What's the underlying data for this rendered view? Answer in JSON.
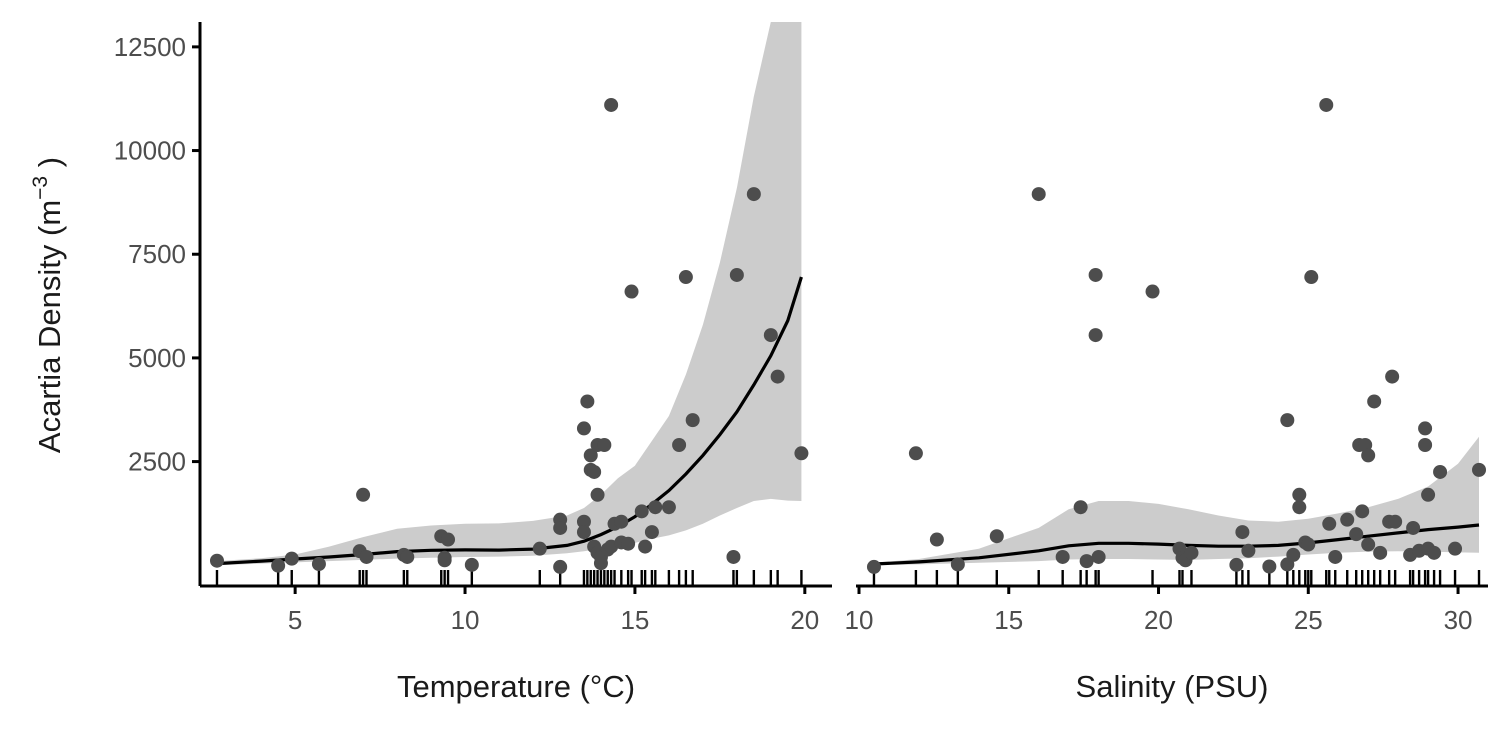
{
  "chart_data": [
    {
      "type": "scatter",
      "xlabel": "Temperature (°C)",
      "ylabel": {
        "text": "Acartia Density (m",
        "sup": "−3",
        "close": " )"
      },
      "xlim": [
        2.2,
        20.8
      ],
      "ylim": [
        -500,
        13100
      ],
      "xticks": [
        5,
        10,
        15,
        20
      ],
      "yticks": [
        2500,
        5000,
        7500,
        10000,
        12500
      ],
      "grid": false,
      "colors": {
        "points": "#4d4d4d",
        "band": "#cccccc",
        "line": "#000000"
      },
      "smooth": {
        "x": [
          2.7,
          4,
          5,
          6,
          7,
          8,
          9,
          10,
          11,
          12,
          13,
          13.5,
          14,
          14.5,
          15,
          15.5,
          16,
          16.5,
          17,
          17.5,
          18,
          18.5,
          19,
          19.5,
          19.9
        ],
        "y": [
          40,
          100,
          150,
          200,
          260,
          330,
          360,
          370,
          365,
          390,
          480,
          580,
          740,
          930,
          1170,
          1470,
          1800,
          2200,
          2650,
          3150,
          3700,
          4350,
          5050,
          5900,
          6950
        ],
        "lower": [
          0,
          40,
          70,
          100,
          130,
          160,
          180,
          200,
          210,
          230,
          290,
          340,
          400,
          460,
          540,
          640,
          720,
          840,
          1000,
          1200,
          1380,
          1550,
          1600,
          1560,
          1550
        ],
        "upper": [
          100,
          170,
          260,
          450,
          680,
          880,
          960,
          1000,
          1010,
          1070,
          1200,
          1380,
          1700,
          2100,
          2400,
          3000,
          3600,
          4600,
          5800,
          7300,
          9100,
          11300,
          13100,
          13100,
          13100
        ]
      },
      "points": [
        {
          "x": 2.7,
          "y": 110
        },
        {
          "x": 4.5,
          "y": -10
        },
        {
          "x": 4.9,
          "y": 160
        },
        {
          "x": 5.7,
          "y": 30
        },
        {
          "x": 6.9,
          "y": 340
        },
        {
          "x": 7.0,
          "y": 1700
        },
        {
          "x": 7.1,
          "y": 200
        },
        {
          "x": 8.2,
          "y": 250
        },
        {
          "x": 8.3,
          "y": 200
        },
        {
          "x": 9.3,
          "y": 700
        },
        {
          "x": 9.4,
          "y": 180
        },
        {
          "x": 9.5,
          "y": 620
        },
        {
          "x": 9.4,
          "y": 120
        },
        {
          "x": 10.2,
          "y": 10
        },
        {
          "x": 12.2,
          "y": 400
        },
        {
          "x": 12.8,
          "y": 1100
        },
        {
          "x": 12.8,
          "y": 900
        },
        {
          "x": 12.8,
          "y": -40
        },
        {
          "x": 13.5,
          "y": 3300
        },
        {
          "x": 13.6,
          "y": 3950
        },
        {
          "x": 13.5,
          "y": 1050
        },
        {
          "x": 13.5,
          "y": 800
        },
        {
          "x": 13.7,
          "y": 2650
        },
        {
          "x": 13.7,
          "y": 2300
        },
        {
          "x": 13.8,
          "y": 2250
        },
        {
          "x": 13.9,
          "y": 2900
        },
        {
          "x": 13.9,
          "y": 1700
        },
        {
          "x": 13.8,
          "y": 450
        },
        {
          "x": 13.9,
          "y": 300
        },
        {
          "x": 14.0,
          "y": 50
        },
        {
          "x": 14.0,
          "y": 200
        },
        {
          "x": 14.1,
          "y": 2900
        },
        {
          "x": 14.2,
          "y": 380
        },
        {
          "x": 14.3,
          "y": 450
        },
        {
          "x": 14.3,
          "y": 11100
        },
        {
          "x": 14.4,
          "y": 1000
        },
        {
          "x": 14.6,
          "y": 1050
        },
        {
          "x": 14.6,
          "y": 550
        },
        {
          "x": 14.8,
          "y": 520
        },
        {
          "x": 14.9,
          "y": 6600
        },
        {
          "x": 15.2,
          "y": 1300
        },
        {
          "x": 15.3,
          "y": 450
        },
        {
          "x": 15.5,
          "y": 800
        },
        {
          "x": 15.6,
          "y": 1400
        },
        {
          "x": 16.0,
          "y": 1400
        },
        {
          "x": 16.3,
          "y": 2900
        },
        {
          "x": 16.5,
          "y": 6950
        },
        {
          "x": 16.7,
          "y": 3500
        },
        {
          "x": 17.9,
          "y": 200
        },
        {
          "x": 18.0,
          "y": 7000
        },
        {
          "x": 18.5,
          "y": 8950
        },
        {
          "x": 19.0,
          "y": 5550
        },
        {
          "x": 19.2,
          "y": 4550
        },
        {
          "x": 19.9,
          "y": 2700
        }
      ],
      "rug": [
        2.7,
        4.5,
        4.9,
        5.7,
        6.9,
        7.0,
        7.1,
        8.2,
        8.3,
        9.3,
        9.4,
        9.5,
        10.2,
        12.2,
        12.8,
        13.5,
        13.6,
        13.7,
        13.8,
        13.9,
        14.0,
        14.1,
        14.2,
        14.3,
        14.4,
        14.6,
        14.8,
        14.9,
        15.2,
        15.3,
        15.5,
        15.6,
        16.0,
        16.3,
        16.5,
        16.7,
        17.9,
        18.0,
        18.5,
        19.0,
        19.2,
        19.9
      ]
    },
    {
      "type": "scatter",
      "xlabel": "Salinity (PSU)",
      "xlim": [
        9.9,
        31.0
      ],
      "ylim": [
        -500,
        13100
      ],
      "xticks": [
        10,
        15,
        20,
        25,
        30
      ],
      "grid": false,
      "colors": {
        "points": "#4d4d4d",
        "band": "#cccccc",
        "line": "#000000"
      },
      "smooth": {
        "x": [
          10.5,
          12,
          14,
          16,
          17,
          18,
          19,
          20,
          21,
          22,
          23,
          24,
          25,
          26,
          27,
          28,
          29,
          30,
          30.7
        ],
        "y": [
          30,
          80,
          180,
          350,
          470,
          530,
          530,
          510,
          480,
          460,
          460,
          480,
          540,
          620,
          700,
          780,
          860,
          920,
          970
        ],
        "lower": [
          0,
          20,
          60,
          100,
          140,
          150,
          150,
          140,
          130,
          150,
          170,
          210,
          260,
          300,
          330,
          340,
          330,
          310,
          300
        ],
        "upper": [
          60,
          150,
          400,
          900,
          1350,
          1550,
          1550,
          1480,
          1350,
          1200,
          1080,
          1050,
          1120,
          1250,
          1400,
          1600,
          1900,
          2450,
          3100
        ]
      },
      "points": [
        {
          "x": 10.5,
          "y": -40
        },
        {
          "x": 11.9,
          "y": 2700
        },
        {
          "x": 12.6,
          "y": 620
        },
        {
          "x": 13.3,
          "y": 20
        },
        {
          "x": 14.6,
          "y": 700
        },
        {
          "x": 16.0,
          "y": 8950
        },
        {
          "x": 16.8,
          "y": 200
        },
        {
          "x": 17.4,
          "y": 1400
        },
        {
          "x": 17.6,
          "y": 100
        },
        {
          "x": 17.9,
          "y": 7000
        },
        {
          "x": 17.9,
          "y": 5550
        },
        {
          "x": 18.0,
          "y": 200
        },
        {
          "x": 19.8,
          "y": 6600
        },
        {
          "x": 20.7,
          "y": 400
        },
        {
          "x": 20.8,
          "y": 180
        },
        {
          "x": 20.9,
          "y": 120
        },
        {
          "x": 21.1,
          "y": 300
        },
        {
          "x": 22.6,
          "y": 10
        },
        {
          "x": 22.8,
          "y": 800
        },
        {
          "x": 23.0,
          "y": 350
        },
        {
          "x": 23.7,
          "y": -30
        },
        {
          "x": 24.3,
          "y": 3500
        },
        {
          "x": 24.3,
          "y": 20
        },
        {
          "x": 24.5,
          "y": 250
        },
        {
          "x": 24.7,
          "y": 1400
        },
        {
          "x": 24.7,
          "y": 1700
        },
        {
          "x": 24.9,
          "y": 550
        },
        {
          "x": 25.0,
          "y": 500
        },
        {
          "x": 25.1,
          "y": 6950
        },
        {
          "x": 25.6,
          "y": 11100
        },
        {
          "x": 25.7,
          "y": 1000
        },
        {
          "x": 25.9,
          "y": 200
        },
        {
          "x": 26.3,
          "y": 1100
        },
        {
          "x": 26.6,
          "y": 750
        },
        {
          "x": 26.7,
          "y": 2900
        },
        {
          "x": 26.8,
          "y": 1300
        },
        {
          "x": 26.9,
          "y": 2900
        },
        {
          "x": 27.0,
          "y": 2650
        },
        {
          "x": 27.0,
          "y": 500
        },
        {
          "x": 27.2,
          "y": 3950
        },
        {
          "x": 27.4,
          "y": 300
        },
        {
          "x": 27.7,
          "y": 1050
        },
        {
          "x": 27.8,
          "y": 4550
        },
        {
          "x": 27.9,
          "y": 1050
        },
        {
          "x": 28.4,
          "y": 250
        },
        {
          "x": 28.5,
          "y": 900
        },
        {
          "x": 28.7,
          "y": 350
        },
        {
          "x": 28.9,
          "y": 3300
        },
        {
          "x": 28.9,
          "y": 2900
        },
        {
          "x": 29.0,
          "y": 1700
        },
        {
          "x": 29.0,
          "y": 400
        },
        {
          "x": 29.2,
          "y": 300
        },
        {
          "x": 29.4,
          "y": 2250
        },
        {
          "x": 29.9,
          "y": 400
        },
        {
          "x": 30.7,
          "y": 2300
        }
      ],
      "rug": [
        10.5,
        11.9,
        12.6,
        13.3,
        14.6,
        16.0,
        16.8,
        17.4,
        17.6,
        17.9,
        18.0,
        19.8,
        20.7,
        20.8,
        21.1,
        22.6,
        22.8,
        23.0,
        23.7,
        24.3,
        24.5,
        24.7,
        24.9,
        25.0,
        25.1,
        25.6,
        25.7,
        25.9,
        26.3,
        26.6,
        26.8,
        27.0,
        27.2,
        27.4,
        27.7,
        27.9,
        28.4,
        28.5,
        28.7,
        28.9,
        29.0,
        29.2,
        29.4,
        29.9,
        30.7
      ]
    }
  ]
}
